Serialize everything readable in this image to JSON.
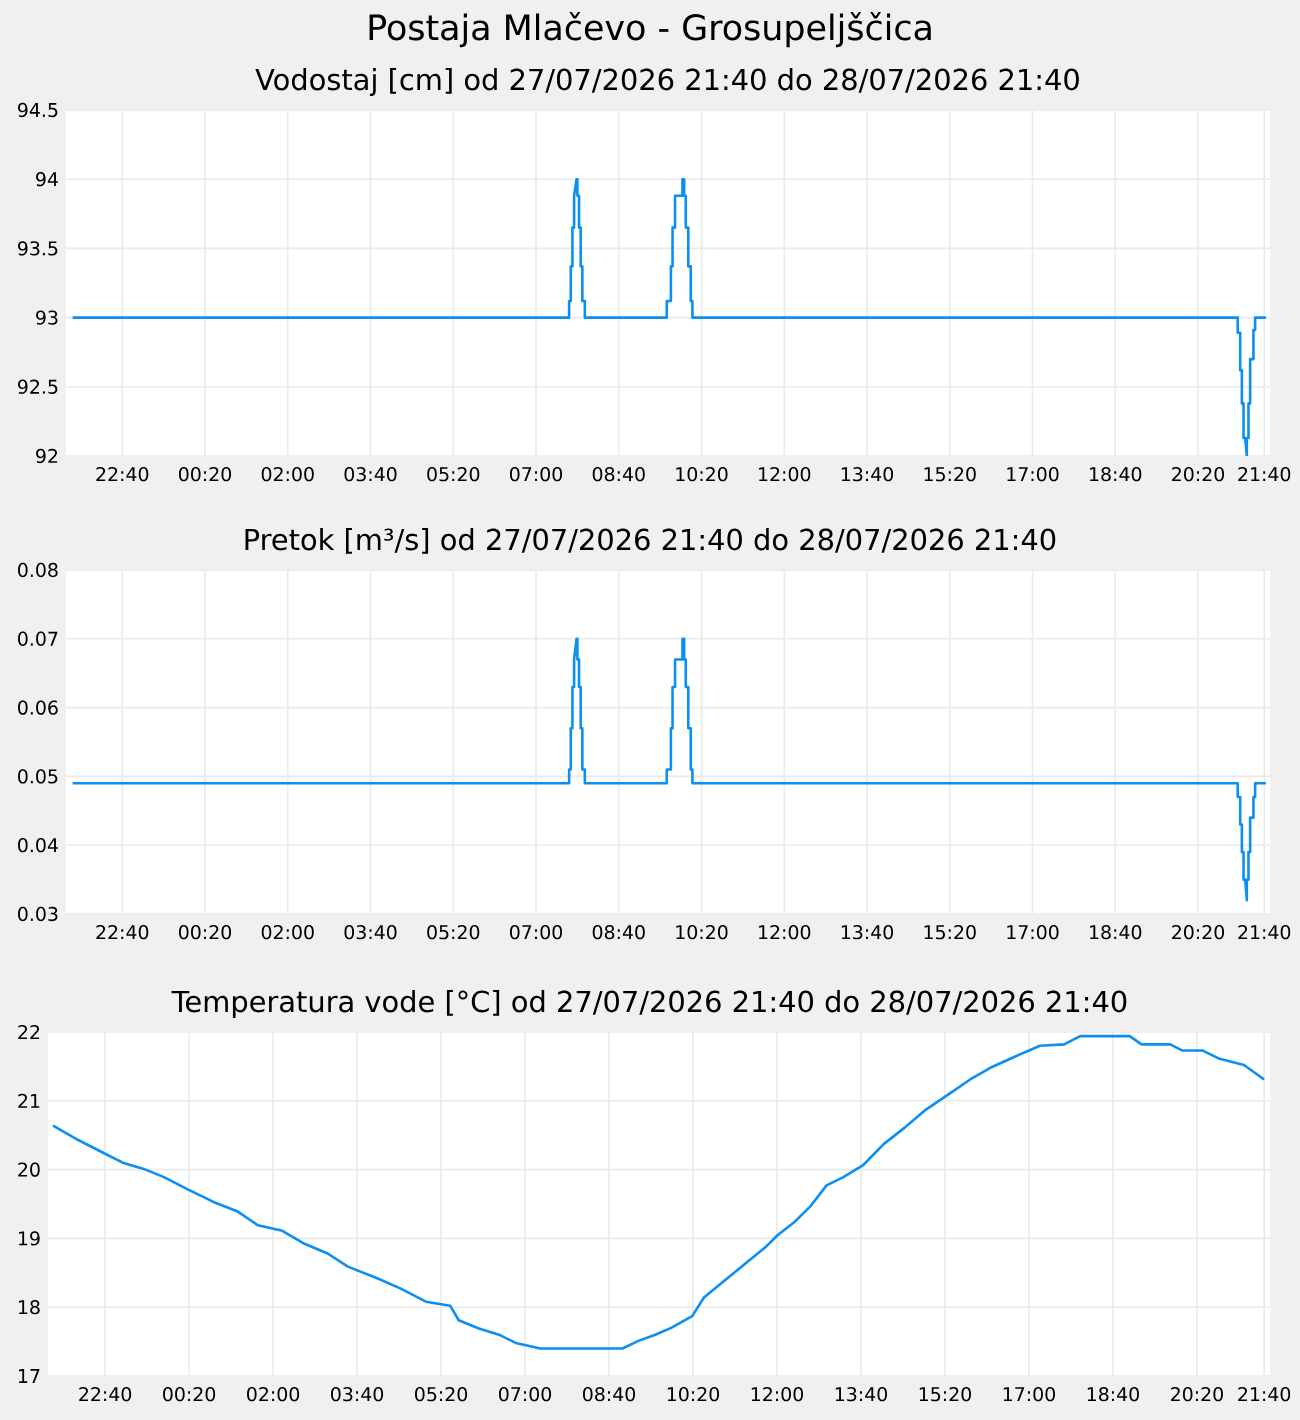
{
  "chart_data": [
    {
      "type": "line",
      "title": "Postaja Mlačevo - Grosupeljščica",
      "subtitle": "Vodostaj [cm] od 27/07/2026 21:40 do 28/07/2026 21:40",
      "x": [
        "2026-07-27T21:40",
        "2026-07-28T07:40",
        "2026-07-28T07:40",
        "2026-07-28T07:42",
        "2026-07-28T07:42",
        "2026-07-28T07:44",
        "2026-07-28T07:44",
        "2026-07-28T07:46",
        "2026-07-28T07:46",
        "2026-07-28T07:49",
        "2026-07-28T07:50",
        "2026-07-28T07:50",
        "2026-07-28T07:52",
        "2026-07-28T07:52",
        "2026-07-28T07:54",
        "2026-07-28T07:54",
        "2026-07-28T07:56",
        "2026-07-28T07:56",
        "2026-07-28T07:59",
        "2026-07-28T07:59",
        "2026-07-28T09:38",
        "2026-07-28T09:38",
        "2026-07-28T09:43",
        "2026-07-28T09:43",
        "2026-07-28T09:45",
        "2026-07-28T09:45",
        "2026-07-28T09:48",
        "2026-07-28T09:48",
        "2026-07-28T09:57",
        "2026-07-28T09:57",
        "2026-07-28T09:59",
        "2026-07-28T09:59",
        "2026-07-28T10:01",
        "2026-07-28T10:01",
        "2026-07-28T10:04",
        "2026-07-28T10:04",
        "2026-07-28T10:07",
        "2026-07-28T10:07",
        "2026-07-28T10:09",
        "2026-07-28T10:09",
        "2026-07-28T21:08",
        "2026-07-28T21:08",
        "2026-07-28T21:11",
        "2026-07-28T21:11",
        "2026-07-28T21:13",
        "2026-07-28T21:13",
        "2026-07-28T21:15",
        "2026-07-28T21:15",
        "2026-07-28T21:17",
        "2026-07-28T21:19",
        "2026-07-28T21:19",
        "2026-07-28T21:21",
        "2026-07-28T21:21",
        "2026-07-28T21:23",
        "2026-07-28T21:23",
        "2026-07-28T21:27",
        "2026-07-28T21:27",
        "2026-07-28T21:29",
        "2026-07-28T21:29",
        "2026-07-28T21:42"
      ],
      "series": [
        {
          "color": "#0c8ff2",
          "values": [
            93,
            93,
            93.12,
            93.12,
            93.37,
            93.37,
            93.65,
            93.65,
            93.88,
            94.0,
            94.0,
            93.88,
            93.88,
            93.65,
            93.65,
            93.37,
            93.37,
            93.12,
            93.12,
            93,
            93,
            93.12,
            93.12,
            93.37,
            93.37,
            93.65,
            93.65,
            93.88,
            93.88,
            94.0,
            94.0,
            93.88,
            93.88,
            93.65,
            93.65,
            93.37,
            93.37,
            93.12,
            93.12,
            93,
            93,
            92.89,
            92.89,
            92.62,
            92.62,
            92.38,
            92.38,
            92.13,
            92.13,
            92.0,
            92.13,
            92.13,
            92.38,
            92.38,
            92.7,
            92.7,
            92.91,
            92.91,
            93,
            93
          ]
        }
      ],
      "xlim": [
        "2026-07-27T21:32",
        "2026-07-28T21:47"
      ],
      "ylim": [
        92,
        94.5
      ],
      "yticks": [
        92,
        92.5,
        93,
        93.5,
        94,
        94.5
      ],
      "xticks": [
        {
          "value": "2026-07-27T22:40",
          "label": "22:40"
        },
        {
          "value": "2026-07-28T00:20",
          "label": "00:20"
        },
        {
          "value": "2026-07-28T02:00",
          "label": "02:00"
        },
        {
          "value": "2026-07-28T03:40",
          "label": "03:40"
        },
        {
          "value": "2026-07-28T05:20",
          "label": "05:20"
        },
        {
          "value": "2026-07-28T07:00",
          "label": "07:00"
        },
        {
          "value": "2026-07-28T08:40",
          "label": "08:40"
        },
        {
          "value": "2026-07-28T10:20",
          "label": "10:20"
        },
        {
          "value": "2026-07-28T12:00",
          "label": "12:00"
        },
        {
          "value": "2026-07-28T13:40",
          "label": "13:40"
        },
        {
          "value": "2026-07-28T15:20",
          "label": "15:20"
        },
        {
          "value": "2026-07-28T17:00",
          "label": "17:00"
        },
        {
          "value": "2026-07-28T18:40",
          "label": "18:40"
        },
        {
          "value": "2026-07-28T20:20",
          "label": "20:20"
        },
        {
          "value": "2026-07-28T21:40",
          "label": "21:40"
        }
      ],
      "grid": true
    },
    {
      "type": "line",
      "title": "Pretok [m³/s] od 27/07/2026 21:40 do 28/07/2026 21:40",
      "x": [
        "2026-07-27T21:40",
        "2026-07-28T07:40",
        "2026-07-28T07:40",
        "2026-07-28T07:42",
        "2026-07-28T07:42",
        "2026-07-28T07:44",
        "2026-07-28T07:44",
        "2026-07-28T07:46",
        "2026-07-28T07:46",
        "2026-07-28T07:49",
        "2026-07-28T07:50",
        "2026-07-28T07:50",
        "2026-07-28T07:52",
        "2026-07-28T07:52",
        "2026-07-28T07:54",
        "2026-07-28T07:54",
        "2026-07-28T07:56",
        "2026-07-28T07:56",
        "2026-07-28T07:59",
        "2026-07-28T07:59",
        "2026-07-28T09:38",
        "2026-07-28T09:38",
        "2026-07-28T09:43",
        "2026-07-28T09:43",
        "2026-07-28T09:45",
        "2026-07-28T09:45",
        "2026-07-28T09:48",
        "2026-07-28T09:48",
        "2026-07-28T09:57",
        "2026-07-28T09:57",
        "2026-07-28T09:59",
        "2026-07-28T09:59",
        "2026-07-28T10:01",
        "2026-07-28T10:01",
        "2026-07-28T10:04",
        "2026-07-28T10:04",
        "2026-07-28T10:07",
        "2026-07-28T10:07",
        "2026-07-28T10:09",
        "2026-07-28T10:09",
        "2026-07-28T21:08",
        "2026-07-28T21:08",
        "2026-07-28T21:11",
        "2026-07-28T21:11",
        "2026-07-28T21:13",
        "2026-07-28T21:13",
        "2026-07-28T21:15",
        "2026-07-28T21:15",
        "2026-07-28T21:17",
        "2026-07-28T21:19",
        "2026-07-28T21:19",
        "2026-07-28T21:21",
        "2026-07-28T21:21",
        "2026-07-28T21:23",
        "2026-07-28T21:23",
        "2026-07-28T21:27",
        "2026-07-28T21:27",
        "2026-07-28T21:29",
        "2026-07-28T21:29",
        "2026-07-28T21:42"
      ],
      "series": [
        {
          "color": "#0c8ff2",
          "values": [
            0.049,
            0.049,
            0.051,
            0.051,
            0.057,
            0.057,
            0.063,
            0.063,
            0.067,
            0.07,
            0.07,
            0.067,
            0.067,
            0.063,
            0.063,
            0.057,
            0.057,
            0.051,
            0.051,
            0.049,
            0.049,
            0.051,
            0.051,
            0.057,
            0.057,
            0.063,
            0.063,
            0.067,
            0.067,
            0.07,
            0.07,
            0.067,
            0.067,
            0.063,
            0.063,
            0.057,
            0.057,
            0.051,
            0.051,
            0.049,
            0.049,
            0.047,
            0.047,
            0.043,
            0.043,
            0.039,
            0.039,
            0.035,
            0.035,
            0.032,
            0.035,
            0.035,
            0.039,
            0.039,
            0.044,
            0.044,
            0.047,
            0.047,
            0.049,
            0.049
          ]
        }
      ],
      "xlim": [
        "2026-07-27T21:32",
        "2026-07-28T21:47"
      ],
      "ylim": [
        0.03,
        0.08
      ],
      "yticks": [
        0.03,
        0.04,
        0.05,
        0.06,
        0.07,
        0.08
      ],
      "xticks": [
        {
          "value": "2026-07-27T22:40",
          "label": "22:40"
        },
        {
          "value": "2026-07-28T00:20",
          "label": "00:20"
        },
        {
          "value": "2026-07-28T02:00",
          "label": "02:00"
        },
        {
          "value": "2026-07-28T03:40",
          "label": "03:40"
        },
        {
          "value": "2026-07-28T05:20",
          "label": "05:20"
        },
        {
          "value": "2026-07-28T07:00",
          "label": "07:00"
        },
        {
          "value": "2026-07-28T08:40",
          "label": "08:40"
        },
        {
          "value": "2026-07-28T10:20",
          "label": "10:20"
        },
        {
          "value": "2026-07-28T12:00",
          "label": "12:00"
        },
        {
          "value": "2026-07-28T13:40",
          "label": "13:40"
        },
        {
          "value": "2026-07-28T15:20",
          "label": "15:20"
        },
        {
          "value": "2026-07-28T17:00",
          "label": "17:00"
        },
        {
          "value": "2026-07-28T18:40",
          "label": "18:40"
        },
        {
          "value": "2026-07-28T20:20",
          "label": "20:20"
        },
        {
          "value": "2026-07-28T21:40",
          "label": "21:40"
        }
      ],
      "grid": true
    },
    {
      "type": "line",
      "title": "Temperatura vode [°C] od 27/07/2026 21:40 do 28/07/2026 21:40",
      "x": [
        "2026-07-27T21:38",
        "2026-07-27T22:08",
        "2026-07-27T22:40",
        "2026-07-27T23:01",
        "2026-07-27T23:26",
        "2026-07-27T23:50",
        "2026-07-28T00:19",
        "2026-07-28T00:49",
        "2026-07-28T01:18",
        "2026-07-28T01:42",
        "2026-07-28T02:11",
        "2026-07-28T02:36",
        "2026-07-28T03:05",
        "2026-07-28T03:29",
        "2026-07-28T04:04",
        "2026-07-28T04:32",
        "2026-07-28T05:02",
        "2026-07-28T05:31",
        "2026-07-28T05:41",
        "2026-07-28T06:05",
        "2026-07-28T06:29",
        "2026-07-28T06:49",
        "2026-07-28T07:18",
        "2026-07-28T07:57",
        "2026-07-28T08:56",
        "2026-07-28T09:15",
        "2026-07-28T09:35",
        "2026-07-28T09:54",
        "2026-07-28T10:19",
        "2026-07-28T10:33",
        "2026-07-28T10:58",
        "2026-07-28T11:22",
        "2026-07-28T11:46",
        "2026-07-28T12:01",
        "2026-07-28T12:20",
        "2026-07-28T12:40",
        "2026-07-28T12:59",
        "2026-07-28T13:19",
        "2026-07-28T13:43",
        "2026-07-28T14:07",
        "2026-07-28T14:32",
        "2026-07-28T14:56",
        "2026-07-28T15:25",
        "2026-07-28T15:50",
        "2026-07-28T16:14",
        "2026-07-28T16:43",
        "2026-07-28T17:13",
        "2026-07-28T17:42",
        "2026-07-28T18:01",
        "2026-07-28T19:00",
        "2026-07-28T19:14",
        "2026-07-28T19:48",
        "2026-07-28T20:03",
        "2026-07-28T20:27",
        "2026-07-28T20:47",
        "2026-07-28T21:16",
        "2026-07-28T21:40"
      ],
      "series": [
        {
          "color": "#0c8ff2",
          "values": [
            20.64,
            20.43,
            20.23,
            20.1,
            20.01,
            19.89,
            19.71,
            19.53,
            19.39,
            19.19,
            19.11,
            18.93,
            18.78,
            18.59,
            18.42,
            18.27,
            18.08,
            18.02,
            17.81,
            17.69,
            17.6,
            17.48,
            17.4,
            17.4,
            17.4,
            17.51,
            17.6,
            17.7,
            17.87,
            18.14,
            18.39,
            18.63,
            18.87,
            19.05,
            19.23,
            19.47,
            19.77,
            19.89,
            20.07,
            20.37,
            20.61,
            20.86,
            21.1,
            21.31,
            21.48,
            21.64,
            21.8,
            21.82,
            21.94,
            21.94,
            21.82,
            21.82,
            21.73,
            21.73,
            21.61,
            21.52,
            21.31
          ]
        }
      ],
      "xlim": [
        "2026-07-27T21:32",
        "2026-07-28T21:47"
      ],
      "ylim": [
        17,
        22
      ],
      "yticks": [
        17,
        18,
        19,
        20,
        21,
        22
      ],
      "xticks": [
        {
          "value": "2026-07-27T22:40",
          "label": "22:40"
        },
        {
          "value": "2026-07-28T00:20",
          "label": "00:20"
        },
        {
          "value": "2026-07-28T02:00",
          "label": "02:00"
        },
        {
          "value": "2026-07-28T03:40",
          "label": "03:40"
        },
        {
          "value": "2026-07-28T05:20",
          "label": "05:20"
        },
        {
          "value": "2026-07-28T07:00",
          "label": "07:00"
        },
        {
          "value": "2026-07-28T08:40",
          "label": "08:40"
        },
        {
          "value": "2026-07-28T10:20",
          "label": "10:20"
        },
        {
          "value": "2026-07-28T12:00",
          "label": "12:00"
        },
        {
          "value": "2026-07-28T13:40",
          "label": "13:40"
        },
        {
          "value": "2026-07-28T15:20",
          "label": "15:20"
        },
        {
          "value": "2026-07-28T17:00",
          "label": "17:00"
        },
        {
          "value": "2026-07-28T18:40",
          "label": "18:40"
        },
        {
          "value": "2026-07-28T20:20",
          "label": "20:20"
        },
        {
          "value": "2026-07-28T21:40",
          "label": "21:40"
        }
      ],
      "grid": true
    }
  ]
}
